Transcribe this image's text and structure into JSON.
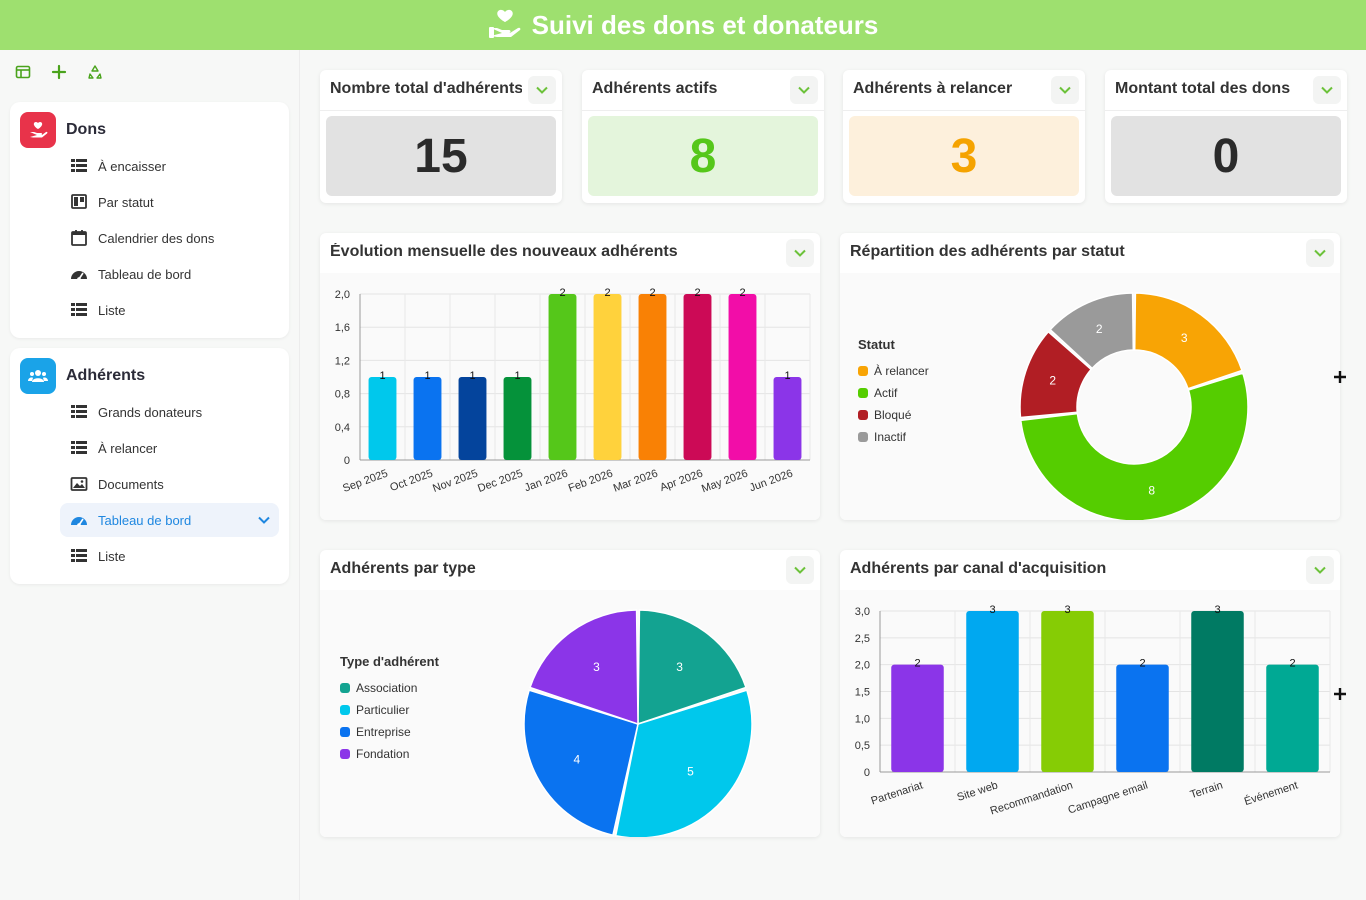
{
  "header": {
    "title": "Suivi des dons et donateurs"
  },
  "sidebar": {
    "sections": [
      {
        "title": "Dons",
        "color": "#e8334a",
        "items": [
          {
            "label": "À encaisser",
            "icon": "table-icon"
          },
          {
            "label": "Par statut",
            "icon": "kanban-icon"
          },
          {
            "label": "Calendrier des dons",
            "icon": "calendar-icon"
          },
          {
            "label": "Tableau de bord",
            "icon": "dashboard-icon"
          },
          {
            "label": "Liste",
            "icon": "table-icon"
          }
        ]
      },
      {
        "title": "Adhérents",
        "color": "#1aa3e8",
        "items": [
          {
            "label": "Grands donateurs",
            "icon": "table-icon"
          },
          {
            "label": "À relancer",
            "icon": "table-icon"
          },
          {
            "label": "Documents",
            "icon": "gallery-icon"
          },
          {
            "label": "Tableau de bord",
            "icon": "dashboard-icon",
            "active": true
          },
          {
            "label": "Liste",
            "icon": "table-icon"
          }
        ]
      }
    ]
  },
  "kpis": [
    {
      "title": "Nombre total d'adhérents",
      "value": "15",
      "bg": "#e2e2e2",
      "color": "#2b2b2b"
    },
    {
      "title": "Adhérents actifs",
      "value": "8",
      "bg": "#e4f5dc",
      "color": "#55c71a"
    },
    {
      "title": "Adhérents à relancer",
      "value": "3",
      "bg": "#fdf0dc",
      "color": "#f5a300"
    },
    {
      "title": "Montant total des dons",
      "value": "0",
      "bg": "#e2e2e2",
      "color": "#2b2b2b"
    }
  ],
  "chart_data": [
    {
      "title": "Évolution mensuelle des nouveaux adhérents",
      "type": "bar",
      "categories": [
        "Sep 2025",
        "Oct 2025",
        "Nov 2025",
        "Dec 2025",
        "Jan 2026",
        "Feb 2026",
        "Mar 2026",
        "Apr 2026",
        "May 2026",
        "Jun 2026"
      ],
      "values": [
        1,
        1,
        1,
        1,
        2,
        2,
        2,
        2,
        2,
        1
      ],
      "colors": [
        "#00c8ec",
        "#0a73f0",
        "#04449c",
        "#05923a",
        "#55c71a",
        "#ffd23c",
        "#f98105",
        "#cc0a56",
        "#f20da8",
        "#8b35e8"
      ],
      "yticks": [
        "0",
        "0,4",
        "0,8",
        "1,2",
        "1,6",
        "2,0"
      ],
      "ylim": [
        0,
        2
      ],
      "grid": true
    },
    {
      "title": "Répartition des adhérents par statut",
      "type": "pie",
      "donut": true,
      "legend_title": "Statut",
      "legend_position": "left",
      "slices": [
        {
          "label": "À relancer",
          "value": 3,
          "color": "#f8a405"
        },
        {
          "label": "Actif",
          "value": 8,
          "color": "#55cd00"
        },
        {
          "label": "Bloqué",
          "value": 2,
          "color": "#b11e24"
        },
        {
          "label": "Inactif",
          "value": 2,
          "color": "#9a9a9a"
        }
      ]
    },
    {
      "title": "Adhérents par type",
      "type": "pie",
      "donut": false,
      "legend_title": "Type d'adhérent",
      "legend_position": "left",
      "slices": [
        {
          "label": "Association",
          "value": 3,
          "color": "#13a391"
        },
        {
          "label": "Particulier",
          "value": 5,
          "color": "#00c8ec"
        },
        {
          "label": "Entreprise",
          "value": 4,
          "color": "#0a73f0"
        },
        {
          "label": "Fondation",
          "value": 3,
          "color": "#8b35e8"
        }
      ]
    },
    {
      "title": "Adhérents par canal d'acquisition",
      "type": "bar",
      "categories": [
        "Partenariat",
        "Site web",
        "Recommandation",
        "Campagne email",
        "Terrain",
        "Événement"
      ],
      "values": [
        2,
        3,
        3,
        2,
        3,
        2
      ],
      "colors": [
        "#8b35e8",
        "#00a8f0",
        "#86cc05",
        "#0a73f0",
        "#007a63",
        "#00a994"
      ],
      "yticks": [
        "0",
        "0,5",
        "1,0",
        "1,5",
        "2,0",
        "2,5",
        "3,0"
      ],
      "ylim": [
        0,
        3
      ],
      "grid": true
    }
  ]
}
